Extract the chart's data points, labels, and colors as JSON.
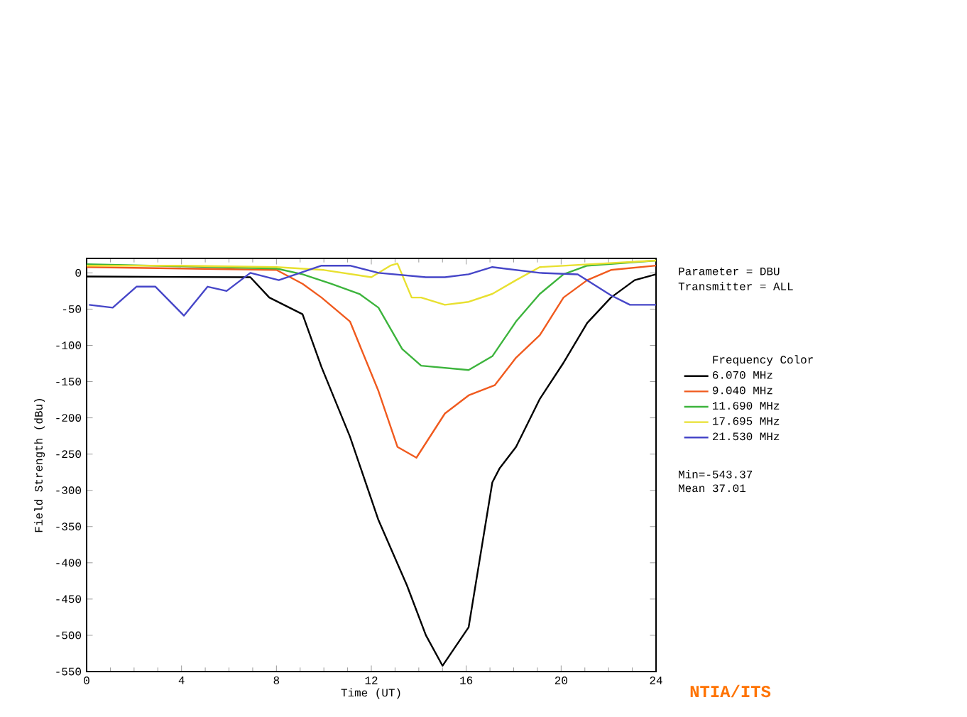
{
  "chart_data": {
    "type": "line",
    "xlabel": "Time (UT)",
    "ylabel": "Field Strength (dBu)",
    "legend_title": "Frequency  Color",
    "legend": "right",
    "xlim": [
      0,
      24
    ],
    "ylim": [
      -550,
      20
    ],
    "xticks": [
      0,
      4,
      8,
      12,
      16,
      20,
      24
    ],
    "yticks": [
      0,
      -50,
      -100,
      -150,
      -200,
      -250,
      -300,
      -350,
      -400,
      -450,
      -500,
      -550
    ],
    "line_style": "solid",
    "marker": "none",
    "grid": false,
    "series": [
      {
        "name": "6.070 MHz",
        "color": "#000000",
        "x": [
          0,
          6.9,
          7.7,
          9.1,
          9.9,
          11.1,
          12.3,
          13.5,
          14.3,
          15.0,
          16.1,
          17.1,
          17.4,
          18.1,
          19.1,
          20.1,
          21.1,
          22.1,
          23.1,
          24
        ],
        "values": [
          -5,
          -6,
          -34,
          -57,
          -130,
          -226,
          -341,
          -431,
          -500,
          -542,
          -489,
          -289,
          -270,
          -240,
          -174,
          -124,
          -69,
          -34,
          -10,
          -2
        ]
      },
      {
        "name": "9.040 MHz",
        "color": "#f05a1e",
        "x": [
          0,
          4,
          8,
          9.1,
          9.9,
          11.1,
          12.3,
          13.1,
          13.9,
          15.1,
          16.1,
          17.2,
          18.1,
          19.1,
          20.1,
          21.1,
          22.1,
          24
        ],
        "values": [
          8,
          6,
          4,
          -15,
          -34,
          -67,
          -163,
          -240,
          -255,
          -194,
          -169,
          -155,
          -117,
          -86,
          -34,
          -10,
          4,
          10
        ]
      },
      {
        "name": "11.690 MHz",
        "color": "#3cb43c",
        "x": [
          0,
          8,
          9.1,
          10.3,
          11.5,
          12.3,
          13.3,
          14.1,
          16.1,
          17.1,
          18.1,
          19.1,
          20.1,
          21.1,
          24
        ],
        "values": [
          12,
          6,
          -2,
          -15,
          -29,
          -48,
          -105,
          -128,
          -134,
          -115,
          -67,
          -29,
          -2,
          10,
          17
        ]
      },
      {
        "name": "17.695 MHz",
        "color": "#e8e030",
        "x": [
          0,
          4,
          8,
          10,
          12,
          12.8,
          13.1,
          13.7,
          14.1,
          15.1,
          16.1,
          17.1,
          18.1,
          19.1,
          24
        ],
        "values": [
          10,
          10,
          8,
          4,
          -6,
          10,
          13,
          -34,
          -34,
          -44,
          -40,
          -29,
          -10,
          8,
          17
        ]
      },
      {
        "name": "21.530 MHz",
        "color": "#4646c8",
        "x": [
          0.1,
          1.1,
          2.1,
          2.9,
          4.1,
          5.1,
          5.9,
          6.9,
          8.1,
          9.9,
          11.1,
          12.3,
          14.3,
          15.1,
          16.1,
          17.1,
          19.1,
          20.7,
          22.1,
          22.9,
          24
        ],
        "values": [
          -44,
          -48,
          -19,
          -19,
          -59,
          -19,
          -25,
          0,
          -10,
          10,
          10,
          0,
          -6,
          -6,
          -2,
          8,
          0,
          -2,
          -31,
          -44,
          -44
        ]
      }
    ],
    "annotations": [
      "Parameter = DBU",
      "Transmitter = ALL",
      "Min=-543.37",
      "Mean 37.01",
      "NTIA/ITS"
    ]
  }
}
